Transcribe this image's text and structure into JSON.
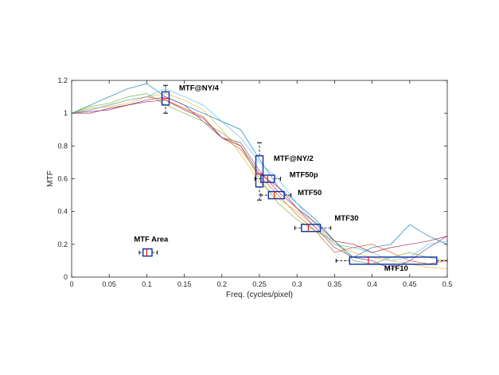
{
  "chart_data": {
    "type": "line",
    "title": "",
    "xlabel": "Freq. (cycles/pixel)",
    "ylabel": "MTF",
    "xlim": [
      0,
      0.5
    ],
    "ylim": [
      0,
      1.2
    ],
    "xticks": [
      0,
      0.05,
      0.1,
      0.15,
      0.2,
      0.25,
      0.3,
      0.35,
      0.4,
      0.45,
      0.5
    ],
    "xtick_labels": [
      "0",
      "0.05",
      "0.1",
      "0.15",
      "0.2",
      "0.25",
      "0.3",
      "0.35",
      "0.4",
      "0.45",
      "0.5"
    ],
    "yticks": [
      0,
      0.2,
      0.4,
      0.6,
      0.8,
      1,
      1.2
    ],
    "ytick_labels": [
      "0",
      "0.2",
      "0.4",
      "0.6",
      "0.8",
      "1",
      "1.2"
    ],
    "grid": false,
    "colors": [
      "#0072bd",
      "#d95319",
      "#edb120",
      "#7e2f8e",
      "#77ac30",
      "#4dbeee",
      "#a2142f"
    ],
    "x": [
      0,
      0.025,
      0.05,
      0.075,
      0.1,
      0.125,
      0.15,
      0.175,
      0.2,
      0.225,
      0.25,
      0.275,
      0.3,
      0.325,
      0.35,
      0.375,
      0.4,
      0.425,
      0.45,
      0.475,
      0.5
    ],
    "series": [
      {
        "values": [
          1.0,
          1.05,
          1.1,
          1.15,
          1.18,
          1.1,
          1.05,
          1.0,
          0.95,
          0.9,
          0.72,
          0.55,
          0.45,
          0.35,
          0.22,
          0.12,
          0.18,
          0.2,
          0.32,
          0.25,
          0.2
        ]
      },
      {
        "values": [
          1.0,
          1.02,
          1.05,
          1.08,
          1.1,
          1.08,
          1.03,
          0.98,
          0.85,
          0.78,
          0.62,
          0.5,
          0.38,
          0.28,
          0.15,
          0.18,
          0.2,
          0.15,
          0.1,
          0.08,
          0.1
        ]
      },
      {
        "values": [
          1.0,
          1.03,
          1.04,
          1.06,
          1.1,
          1.12,
          1.08,
          1.02,
          0.9,
          0.75,
          0.58,
          0.48,
          0.4,
          0.3,
          0.2,
          0.15,
          0.12,
          0.1,
          0.08,
          0.06,
          0.05
        ]
      },
      {
        "values": [
          1.0,
          1.01,
          1.02,
          1.05,
          1.08,
          1.1,
          1.05,
          0.95,
          0.85,
          0.82,
          0.65,
          0.52,
          0.42,
          0.3,
          0.18,
          0.12,
          0.1,
          0.05,
          0.1,
          0.18,
          0.25
        ]
      },
      {
        "values": [
          1.0,
          1.04,
          1.06,
          1.1,
          1.12,
          1.05,
          1.0,
          0.95,
          0.88,
          0.8,
          0.6,
          0.45,
          0.35,
          0.28,
          0.22,
          0.1,
          0.08,
          0.12,
          0.15,
          0.12,
          0.1
        ]
      },
      {
        "values": [
          1.0,
          1.02,
          1.05,
          1.08,
          1.1,
          1.15,
          1.1,
          1.05,
          0.95,
          0.85,
          0.7,
          0.6,
          0.45,
          0.32,
          0.2,
          0.18,
          0.15,
          0.1,
          0.12,
          0.2,
          0.22
        ]
      },
      {
        "values": [
          1.0,
          1.0,
          1.03,
          1.05,
          1.07,
          1.08,
          1.02,
          0.97,
          0.85,
          0.8,
          0.63,
          0.55,
          0.42,
          0.33,
          0.22,
          0.2,
          0.15,
          0.18,
          0.2,
          0.22,
          0.25
        ]
      }
    ],
    "boxplots": [
      {
        "label": "MTF Area",
        "orientation": "horizontal",
        "position": 0.15,
        "whisker_low": 0.09,
        "q1": 0.095,
        "median": 0.1,
        "q3": 0.107,
        "whisker_high": 0.114
      },
      {
        "label": "MTF@NY/4",
        "orientation": "vertical",
        "position": 0.125,
        "whisker_low": 1.0,
        "q1": 1.05,
        "median": 1.09,
        "q3": 1.13,
        "whisker_high": 1.17
      },
      {
        "label": "MTF@NY/2",
        "orientation": "vertical",
        "position": 0.25,
        "whisker_low": 0.47,
        "q1": 0.55,
        "median": 0.63,
        "q3": 0.74,
        "whisker_high": 0.82
      },
      {
        "label": "MTF50p",
        "orientation": "horizontal",
        "position": 0.6,
        "whisker_low": 0.244,
        "q1": 0.252,
        "median": 0.261,
        "q3": 0.27,
        "whisker_high": 0.278
      },
      {
        "label": "MTF50",
        "orientation": "horizontal",
        "position": 0.5,
        "whisker_low": 0.252,
        "q1": 0.262,
        "median": 0.27,
        "q3": 0.283,
        "whisker_high": 0.292
      },
      {
        "label": "MTF30",
        "orientation": "horizontal",
        "position": 0.3,
        "whisker_low": 0.297,
        "q1": 0.306,
        "median": 0.315,
        "q3": 0.331,
        "whisker_high": 0.345
      },
      {
        "label": "MTF10",
        "orientation": "horizontal",
        "position": 0.1,
        "whisker_low": 0.352,
        "q1": 0.37,
        "median": 0.395,
        "q3": 0.486,
        "whisker_high": 0.5
      }
    ],
    "annotations": [
      {
        "text": "MTF@NY/4",
        "x": 0.143,
        "y": 1.14
      },
      {
        "text": "MTF@NY/2",
        "x": 0.269,
        "y": 0.71
      },
      {
        "text": "MTF50p",
        "x": 0.29,
        "y": 0.61
      },
      {
        "text": "MTF50",
        "x": 0.301,
        "y": 0.5
      },
      {
        "text": "MTF30",
        "x": 0.35,
        "y": 0.346
      },
      {
        "text": "MTF10",
        "x": 0.416,
        "y": 0.04
      },
      {
        "text": "MTF Area",
        "x": 0.083,
        "y": 0.215
      }
    ],
    "box_color": "#0b2fa8",
    "median_color": "#e8141c",
    "whisker_color": "#000000"
  }
}
